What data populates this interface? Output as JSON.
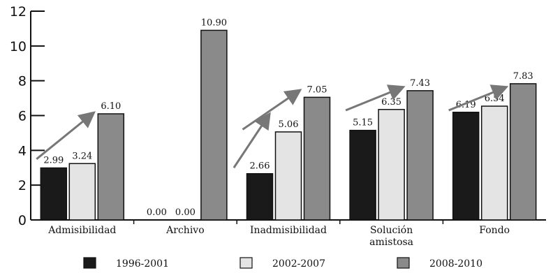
{
  "chart_data": {
    "type": "bar",
    "categories": [
      "Admisibilidad",
      "Archivo",
      "Inadmisibilidad",
      "Solución amistosa",
      "Fondo"
    ],
    "category_lines": [
      [
        "Admisibilidad"
      ],
      [
        "Archivo"
      ],
      [
        "Inadmisibilidad"
      ],
      [
        "Solución",
        "amistosa"
      ],
      [
        "Fondo"
      ]
    ],
    "series": [
      {
        "name": "1996-2001",
        "values": [
          2.99,
          0.0,
          2.66,
          5.15,
          6.19
        ],
        "labels": [
          "2.99",
          "0.00",
          "2.66",
          "5.15",
          "6.19"
        ],
        "color": "#1a1a1a"
      },
      {
        "name": "2002-2007",
        "values": [
          3.24,
          0.0,
          5.06,
          6.35,
          6.54
        ],
        "labels": [
          "3.24",
          "0.00",
          "5.06",
          "6.35",
          "6.54"
        ],
        "color": "#e4e4e4"
      },
      {
        "name": "2008-2010",
        "values": [
          6.1,
          10.9,
          7.05,
          7.43,
          7.83
        ],
        "labels": [
          "6.10",
          "10.90",
          "7.05",
          "7.43",
          "7.83"
        ],
        "color": "#8a8a8a"
      }
    ],
    "yticks": [
      "0",
      "2",
      "4",
      "6",
      "8",
      "10",
      "12"
    ],
    "ylim": [
      0,
      12
    ],
    "grid": false,
    "legend_position": "bottom",
    "trend_arrows": [
      {
        "category": "Admisibilidad",
        "from": 3.5,
        "to": 6.1
      },
      {
        "category": "Archivo",
        "from": 3.0,
        "to": 6.0
      },
      {
        "category": "Inadmisibilidad",
        "from": 5.2,
        "to": 7.4
      },
      {
        "category": "Solución amistosa",
        "from": 6.3,
        "to": 7.6
      },
      {
        "category": "Fondo",
        "from": 6.3,
        "to": 7.6
      }
    ],
    "arrow_color": "#777777"
  }
}
